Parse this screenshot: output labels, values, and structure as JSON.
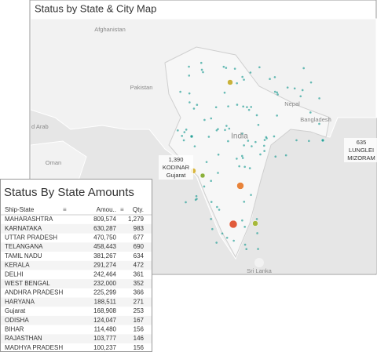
{
  "map": {
    "title": "Status by State & City Map",
    "labels": [
      "Afghanistan",
      "Pakistan",
      "India",
      "Nepal",
      "Bangladesh",
      "Oman",
      "d Arab",
      "Sri Lanka"
    ],
    "annotations": [
      {
        "lines": [
          "1,390",
          "KODINAR",
          "Gujarat"
        ]
      },
      {
        "lines": [
          "635",
          "LUNGLEI",
          "MIZORAM"
        ]
      }
    ]
  },
  "table": {
    "title": "Status By State Amounts",
    "columns": [
      "Ship-State",
      "Amou..",
      "Qty."
    ],
    "rows": [
      [
        "MAHARASHTRA",
        "809,574",
        "1,279"
      ],
      [
        "KARNATAKA",
        "630,287",
        "983"
      ],
      [
        "UTTAR PRADESH",
        "470,750",
        "677"
      ],
      [
        "TELANGANA",
        "458,443",
        "690"
      ],
      [
        "TAMIL NADU",
        "381,267",
        "634"
      ],
      [
        "KERALA",
        "291,274",
        "472"
      ],
      [
        "DELHI",
        "242,464",
        "361"
      ],
      [
        "WEST BENGAL",
        "232,000",
        "352"
      ],
      [
        "ANDHRA PRADESH",
        "225,299",
        "366"
      ],
      [
        "HARYANA",
        "188,511",
        "271"
      ],
      [
        "Gujarat",
        "168,908",
        "253"
      ],
      [
        "ODISHA",
        "124,047",
        "167"
      ],
      [
        "BIHAR",
        "114,480",
        "156"
      ],
      [
        "RAJASTHAN",
        "103,777",
        "146"
      ],
      [
        "MADHYA PRADESH",
        "100,237",
        "156"
      ]
    ]
  }
}
